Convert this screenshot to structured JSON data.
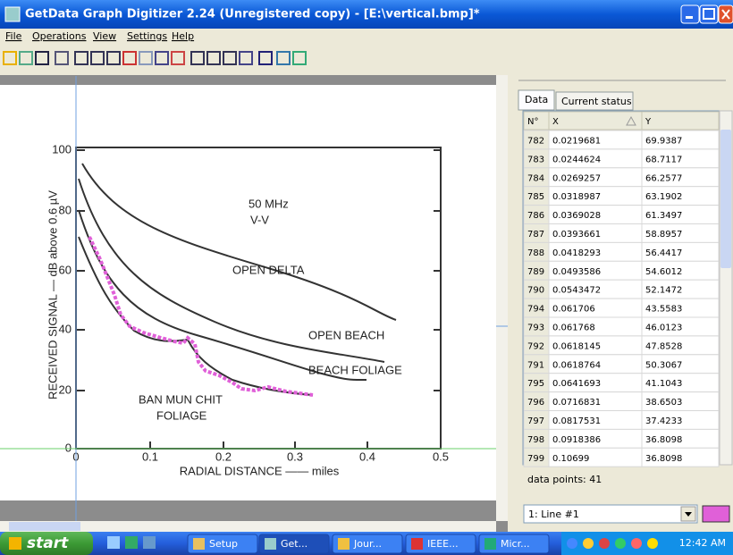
{
  "window": {
    "title": "GetData Graph Digitizer 2.24 (Unregistered copy) - [E:\\vertical.bmp]*"
  },
  "menu": [
    "File",
    "Operations",
    "View",
    "Settings",
    "Help"
  ],
  "graph": {
    "y_ticks": [
      "100",
      "80",
      "60",
      "40",
      "20",
      "0"
    ],
    "x_ticks": [
      "0",
      "0.1",
      "0.2",
      "0.3",
      "0.4",
      "0.5"
    ],
    "y_label": "RECEIVED SIGNAL — dB above 0.6 µV",
    "x_label": "RADIAL DISTANCE —— miles",
    "annotations": [
      "50 MHz",
      "V-V",
      "OPEN DELTA",
      "OPEN BEACH",
      "BEACH FOLIAGE",
      "BAN MUN CHIT",
      "FOLIAGE"
    ]
  },
  "panel": {
    "tabs": [
      "Data",
      "Current status"
    ],
    "table": {
      "columns": [
        "N°",
        "X",
        "Y"
      ],
      "rows": [
        [
          "782",
          "0.0219681",
          "69.9387"
        ],
        [
          "783",
          "0.0244624",
          "68.7117"
        ],
        [
          "784",
          "0.0269257",
          "66.2577"
        ],
        [
          "785",
          "0.0318987",
          "63.1902"
        ],
        [
          "786",
          "0.0369028",
          "61.3497"
        ],
        [
          "787",
          "0.0393661",
          "58.8957"
        ],
        [
          "788",
          "0.0418293",
          "56.4417"
        ],
        [
          "789",
          "0.0493586",
          "54.6012"
        ],
        [
          "790",
          "0.0543472",
          "52.1472"
        ],
        [
          "794",
          "0.061706",
          "43.5583"
        ],
        [
          "793",
          "0.061768",
          "46.0123"
        ],
        [
          "792",
          "0.0618145",
          "47.8528"
        ],
        [
          "791",
          "0.0618764",
          "50.3067"
        ],
        [
          "795",
          "0.0641693",
          "41.1043"
        ],
        [
          "796",
          "0.0716831",
          "38.6503"
        ],
        [
          "797",
          "0.0817531",
          "37.4233"
        ],
        [
          "798",
          "0.0918386",
          "36.8098"
        ],
        [
          "799",
          "0.10699",
          "36.8098"
        ]
      ]
    },
    "points_label": "data points: 41",
    "line_select": "1: Line #1"
  },
  "taskbar": {
    "start": "start",
    "items": [
      "Setup",
      "Get...",
      "Jour...",
      "IEEE...",
      "Micr..."
    ],
    "clock": "12:42 AM"
  }
}
